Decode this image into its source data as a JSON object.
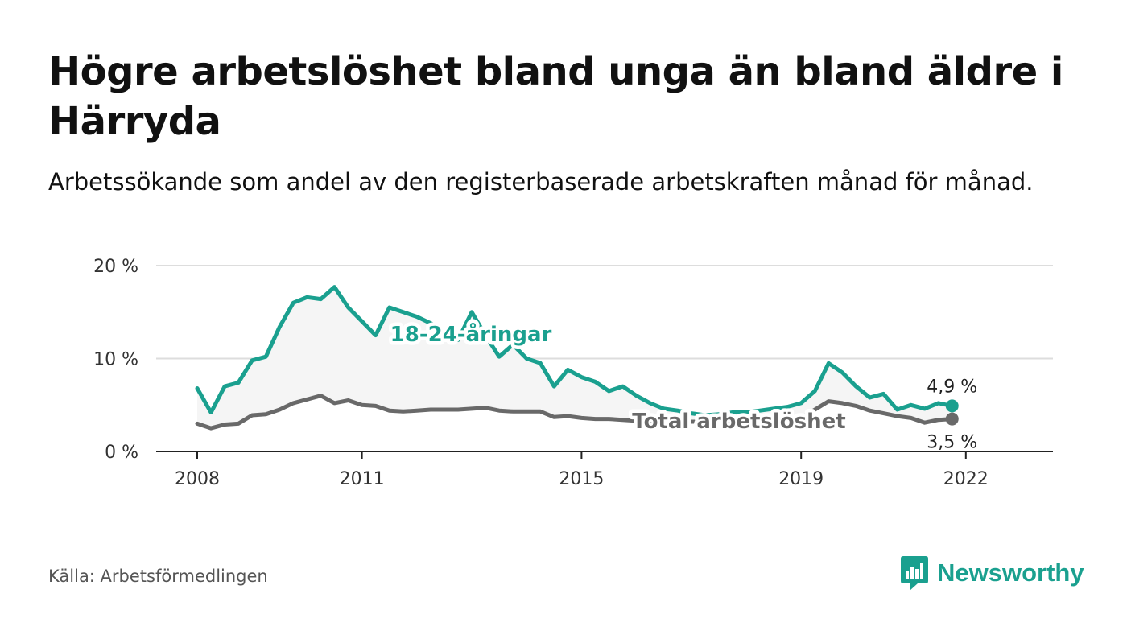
{
  "header": {
    "title": "Högre arbetslöshet bland unga än bland äldre i Härryda",
    "subtitle": "Arbetssökande som andel av den registerbaserade arbetskraften månad för månad."
  },
  "footer": {
    "source": "Källa: Arbetsförmedlingen",
    "brand": "Newsworthy"
  },
  "colors": {
    "youth": "#1aa08f",
    "total": "#696969",
    "area": "#f5f5f5",
    "grid": "#dddddd"
  },
  "chart_data": {
    "type": "line",
    "title": "Högre arbetslöshet bland unga än bland äldre i Härryda",
    "xlabel": "",
    "ylabel": "",
    "ylim": [
      0,
      20
    ],
    "y_ticks": [
      0,
      10,
      20
    ],
    "y_tick_labels": [
      "0 %",
      "10 %",
      "20 %"
    ],
    "x_ticks": [
      2008,
      2011,
      2015,
      2019,
      2022
    ],
    "x_tick_labels": [
      "2008",
      "2011",
      "2015",
      "2019",
      "2022"
    ],
    "grid": true,
    "x_start": 2008.0,
    "x_step": 0.25,
    "series": [
      {
        "name": "18-24-åringar",
        "label": "18-24-åringar",
        "end_label": "4,9 %",
        "values": [
          6.8,
          4.2,
          7.0,
          7.4,
          9.8,
          10.2,
          13.4,
          16.0,
          16.6,
          16.4,
          17.7,
          15.5,
          14.0,
          12.5,
          15.5,
          15.0,
          14.5,
          13.8,
          13.0,
          12.0,
          15.0,
          12.5,
          10.2,
          11.5,
          10.0,
          9.5,
          7.0,
          8.8,
          8.0,
          7.5,
          6.5,
          7.0,
          6.0,
          5.2,
          4.6,
          4.4,
          4.1,
          3.9,
          4.0,
          4.2,
          4.2,
          4.4,
          4.6,
          4.8,
          5.2,
          6.5,
          9.5,
          8.5,
          7.0,
          5.8,
          6.2,
          4.5,
          5.0,
          4.6,
          5.2,
          4.9
        ]
      },
      {
        "name": "Total arbetslöshet",
        "label": "Total arbetslöshet",
        "end_label": "3,5 %",
        "values": [
          3.0,
          2.5,
          2.9,
          3.0,
          3.9,
          4.0,
          4.5,
          5.2,
          5.6,
          6.0,
          5.2,
          5.5,
          5.0,
          4.9,
          4.4,
          4.3,
          4.4,
          4.5,
          4.5,
          4.5,
          4.6,
          4.7,
          4.4,
          4.3,
          4.3,
          4.3,
          3.7,
          3.8,
          3.6,
          3.5,
          3.5,
          3.4,
          3.3,
          3.2,
          3.2,
          3.2,
          3.2,
          3.2,
          3.2,
          3.2,
          3.2,
          3.3,
          3.3,
          3.4,
          3.6,
          4.5,
          5.4,
          5.2,
          4.9,
          4.4,
          4.1,
          3.8,
          3.6,
          3.1,
          3.4,
          3.5
        ]
      }
    ]
  }
}
